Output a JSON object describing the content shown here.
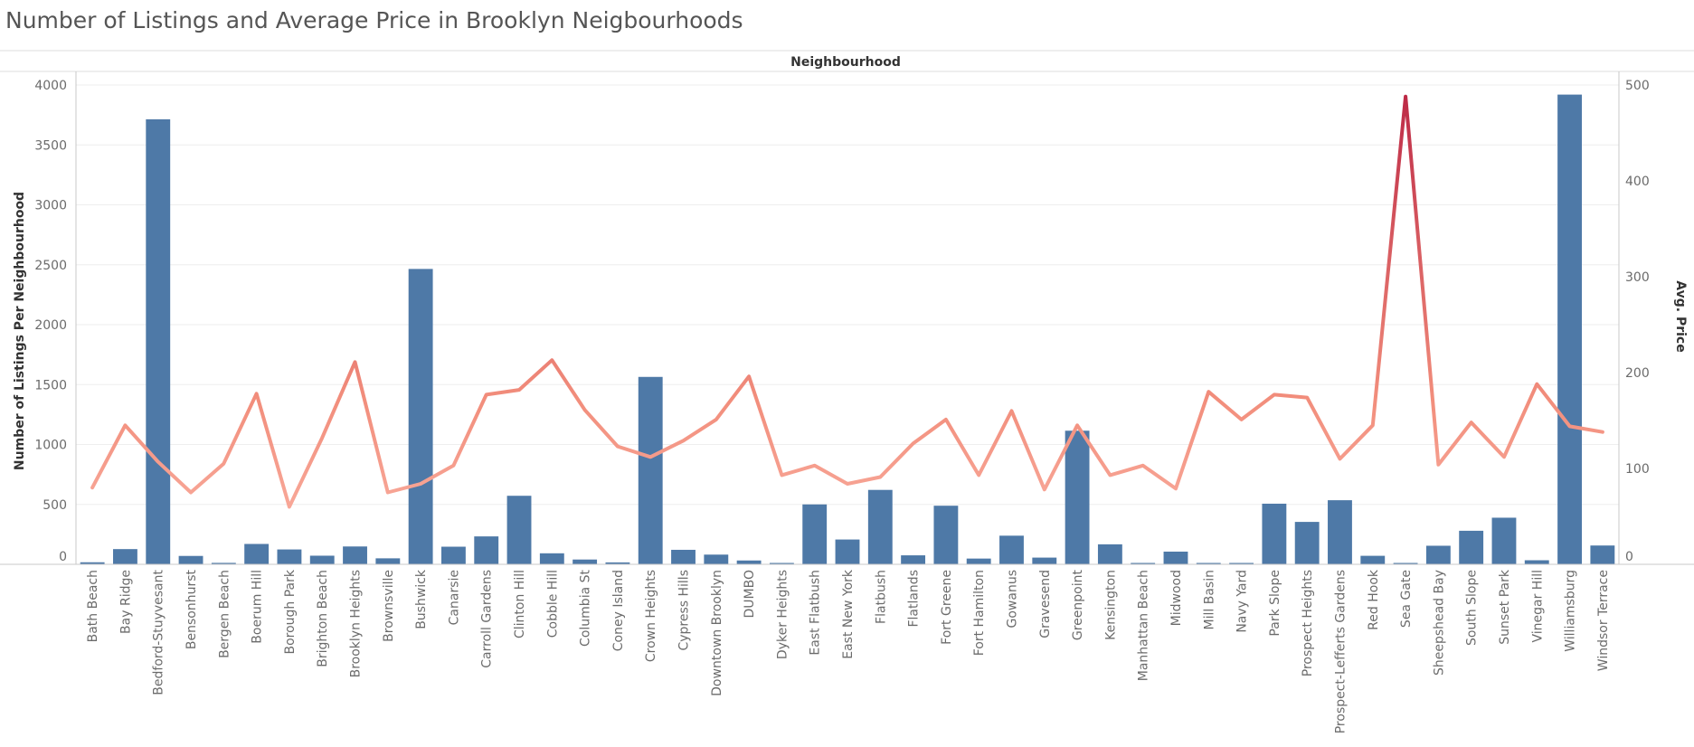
{
  "title": "Number of Listings and Average Price in Brooklyn Neigbourhoods",
  "colors": {
    "bar": "#4e79a7",
    "line_low": "#fbb4a6",
    "line_mid": "#f28e7c",
    "line_high": "#bd2a46",
    "grid": "#eeeeee",
    "axis": "#c8c8c8"
  },
  "chart_data": {
    "type": "bar",
    "title": "Number of Listings and Average Price in Brooklyn Neigbourhoods",
    "xlabel": "Neighbourhood",
    "ylabel": "Number of Listings Per Neighbourhood",
    "y2label": "Avg. Price",
    "ylim": [
      0,
      4000
    ],
    "y2lim": [
      0,
      500
    ],
    "yticks": [
      "0",
      "500",
      "1000",
      "1500",
      "2000",
      "2500",
      "3000",
      "3500",
      "4000"
    ],
    "y2ticks": [
      "0",
      "100",
      "200",
      "300",
      "400",
      "500"
    ],
    "grid": true,
    "categories": [
      "Bath Beach",
      "Bay Ridge",
      "Bedford-Stuyvesant",
      "Bensonhurst",
      "Bergen Beach",
      "Boerum Hill",
      "Borough Park",
      "Brighton Beach",
      "Brooklyn Heights",
      "Brownsville",
      "Bushwick",
      "Canarsie",
      "Carroll Gardens",
      "Clinton Hill",
      "Cobble Hill",
      "Columbia St",
      "Coney Island",
      "Crown Heights",
      "Cypress Hills",
      "Downtown Brooklyn",
      "DUMBO",
      "Dyker Heights",
      "East Flatbush",
      "East New York",
      "Flatbush",
      "Flatlands",
      "Fort Greene",
      "Fort Hamilton",
      "Gowanus",
      "Gravesend",
      "Greenpoint",
      "Kensington",
      "Manhattan Beach",
      "Midwood",
      "Mill Basin",
      "Navy Yard",
      "Park Slope",
      "Prospect Heights",
      "Prospect-Lefferts Gardens",
      "Red Hook",
      "Sea Gate",
      "Sheepshead Bay",
      "South Slope",
      "Sunset Park",
      "Vinegar Hill",
      "Williamsburg",
      "Windsor Terrace"
    ],
    "series": [
      {
        "name": "Number of Listings Per Neighbourhood",
        "type": "bar",
        "axis": "left",
        "values": [
          17,
          127,
          3714,
          70,
          12,
          170,
          124,
          72,
          149,
          50,
          2465,
          147,
          233,
          572,
          92,
          40,
          16,
          1564,
          121,
          81,
          32,
          9,
          500,
          207,
          621,
          75,
          489,
          48,
          239,
          56,
          1115,
          167,
          8,
          106,
          4,
          10,
          506,
          354,
          535,
          71,
          8,
          155,
          280,
          389,
          34,
          3920,
          157
        ]
      },
      {
        "name": "Avg. Price",
        "type": "line",
        "axis": "right",
        "values": [
          80,
          145,
          107,
          75,
          105,
          178,
          60,
          132,
          211,
          75,
          84,
          103,
          177,
          182,
          213,
          161,
          123,
          112,
          129,
          151,
          196,
          93,
          103,
          84,
          91,
          126,
          151,
          93,
          160,
          78,
          145,
          93,
          103,
          79,
          180,
          151,
          177,
          174,
          110,
          145,
          488,
          104,
          148,
          112,
          188,
          144,
          138
        ]
      }
    ]
  }
}
